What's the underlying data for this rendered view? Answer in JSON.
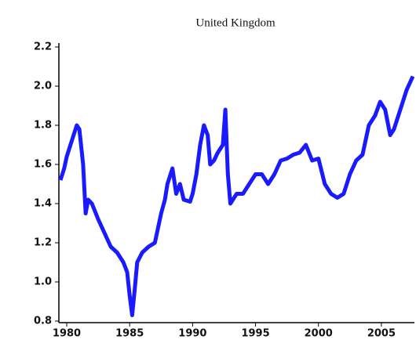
{
  "chart_data": {
    "type": "line",
    "title": "United Kingdom",
    "x": [
      1979.5,
      1979.8,
      1980.0,
      1980.4,
      1980.8,
      1981.0,
      1981.3,
      1981.5,
      1981.7,
      1982.0,
      1982.5,
      1983.0,
      1983.5,
      1984.0,
      1984.5,
      1984.8,
      1985.0,
      1985.2,
      1985.4,
      1985.6,
      1986.0,
      1986.5,
      1987.0,
      1987.5,
      1987.8,
      1988.0,
      1988.4,
      1988.7,
      1989.0,
      1989.3,
      1989.8,
      1990.0,
      1990.3,
      1990.6,
      1990.9,
      1991.2,
      1991.4,
      1991.7,
      1992.0,
      1992.4,
      1992.6,
      1992.8,
      1993.0,
      1993.5,
      1994.0,
      1994.5,
      1995.0,
      1995.5,
      1996.0,
      1996.5,
      1997.0,
      1997.5,
      1998.0,
      1998.5,
      1999.0,
      1999.5,
      2000.0,
      2000.5,
      2001.0,
      2001.5,
      2002.0,
      2002.5,
      2003.0,
      2003.5,
      2004.0,
      2004.5,
      2004.9,
      2005.3,
      2005.7,
      2006.0,
      2006.5,
      2007.0,
      2007.5
    ],
    "values": [
      1.52,
      1.58,
      1.64,
      1.72,
      1.8,
      1.78,
      1.6,
      1.35,
      1.42,
      1.4,
      1.32,
      1.25,
      1.18,
      1.15,
      1.1,
      1.05,
      0.93,
      0.83,
      0.96,
      1.1,
      1.15,
      1.18,
      1.2,
      1.35,
      1.42,
      1.5,
      1.58,
      1.45,
      1.5,
      1.42,
      1.41,
      1.45,
      1.55,
      1.7,
      1.8,
      1.75,
      1.6,
      1.62,
      1.66,
      1.7,
      1.88,
      1.55,
      1.4,
      1.45,
      1.45,
      1.5,
      1.55,
      1.55,
      1.5,
      1.55,
      1.62,
      1.63,
      1.65,
      1.66,
      1.7,
      1.62,
      1.63,
      1.5,
      1.45,
      1.43,
      1.45,
      1.55,
      1.62,
      1.65,
      1.8,
      1.85,
      1.92,
      1.88,
      1.75,
      1.78,
      1.88,
      1.98,
      2.05
    ],
    "color": "#1a1aff",
    "xlim": [
      1979.5,
      2007.5
    ],
    "xticks": [
      1980,
      1985,
      1990,
      1995,
      2000,
      2005
    ],
    "ylim": [
      0.8,
      2.2
    ],
    "yticks": [
      0.8,
      {
        "value": 1.0,
        "label": "1.0"
      },
      1.2,
      1.4,
      1.6,
      1.8,
      {
        "value": 2.0,
        "label": "2.0"
      },
      2.2
    ]
  }
}
